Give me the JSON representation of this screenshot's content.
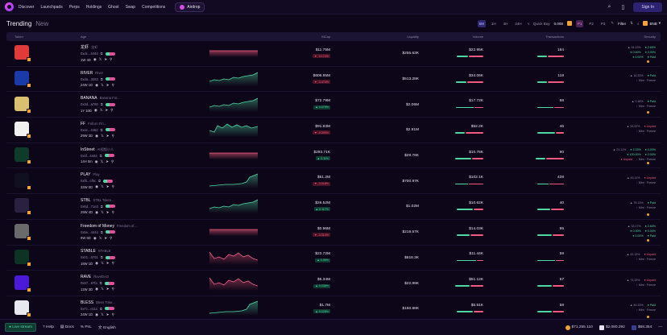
{
  "nav": {
    "items": [
      "Discover",
      "Launchpads",
      "Perps",
      "Holdings",
      "Ghost",
      "Swap",
      "Competitions"
    ],
    "airdrop": "Airdrop",
    "sign_in": "Sign In"
  },
  "subheader": {
    "tab_trending": "Trending",
    "tab_new": "New",
    "timeframes": [
      "5M",
      "1H",
      "4H",
      "24H"
    ],
    "active_timeframe": "5M",
    "quick_buy_label": "Quick Buy",
    "quick_buy_value": "0.008",
    "presets": [
      "P1",
      "P2",
      "P3"
    ],
    "active_preset": "P1",
    "filter_label": "Filter",
    "chain": "BNB"
  },
  "table": {
    "headers": {
      "token": "Token",
      "age": "Age",
      "mcap": "MCap",
      "liquidity": "Liquidity",
      "volume": "Volume",
      "transactions": "Transactions",
      "security": "Security"
    },
    "rows": [
      {
        "symbol": "龙虾",
        "name": "龙虾",
        "address": "0xdc...4444",
        "age": "1W 4D",
        "mcap": "$11.75M",
        "change": "▼ -3.174%",
        "dir": "down",
        "liquidity": "$255.63K",
        "volume": "$22.95K",
        "vol_buy": 14,
        "vol_sell": 18,
        "txns": "184",
        "tx_buy": 12,
        "tx_sell": 20,
        "avatar_color": "#e23a3a",
        "spark": "flat-down",
        "security": [
          [
            "▲ 34.13%",
            "● 2.65%"
          ],
          [
            "● 0.00%",
            "● 0.00%"
          ],
          [
            "● 0.00%",
            "● Paid"
          ]
        ],
        "warn": true
      },
      {
        "symbol": "RIVER",
        "name": "River",
        "address": "0xda...3253",
        "age": "24W 1D",
        "mcap": "$606.95M",
        "change": "▼ -3.474%",
        "dir": "down",
        "liquidity": "$513.28K",
        "volume": "$34.06K",
        "vol_buy": 13,
        "vol_sell": 20,
        "txns": "118",
        "tx_buy": 12,
        "tx_sell": 20,
        "avatar_color": "#1a3aa8",
        "spark": "up",
        "security": [
          [
            "▲ 10.33%",
            "● Paid"
          ],
          [
            "↑ Mint · Freeze"
          ]
        ],
        "warn": false
      },
      {
        "symbol": "BANANA",
        "name": "Banana For...",
        "address": "0x3d...a760",
        "age": "1Y 10D",
        "mcap": "$72.79M",
        "change": "▲ 0.079%",
        "dir": "up",
        "liquidity": "$2.06M",
        "volume": "$17.72K",
        "vol_buy": 22,
        "vol_sell": 11,
        "txns": "88",
        "tx_buy": 20,
        "tx_sell": 12,
        "avatar_color": "#d9c070",
        "spark": "up",
        "security": [
          [
            "▲ 3.18%",
            "● Paid"
          ],
          [
            "↑ Mint · Freeze"
          ]
        ],
        "warn": true
      },
      {
        "symbol": "FF",
        "name": "Falcon Fin...",
        "address": "0xac...4452",
        "age": "29W 3D",
        "mcap": "$91.83M",
        "change": "▼ -0.000%",
        "dir": "down",
        "liquidity": "$2.91M",
        "volume": "$52.2K",
        "vol_buy": 12,
        "vol_sell": 22,
        "txns": "46",
        "tx_buy": 22,
        "tx_sell": 10,
        "avatar_color": "#f0f0f0",
        "spark": "mixed",
        "security": [
          [
            "▲ 33.02%",
            "● Unpaid"
          ],
          [
            "↑ Mint · Freeze"
          ]
        ],
        "warn": false
      },
      {
        "symbol": "InStreet",
        "name": "AI视频小人",
        "address": "0x4f...4444",
        "age": "14H 0m",
        "mcap": "$293.71K",
        "change": "▲ 3.11%",
        "dir": "up",
        "liquidity": "$29.76K",
        "volume": "$10.76K",
        "vol_buy": 20,
        "vol_sell": 14,
        "txns": "90",
        "tx_buy": 12,
        "tx_sell": 22,
        "avatar_color": "#0f3b2a",
        "spark": "flat-down",
        "security": [
          [
            "▲ 21.11%",
            "● 3.33%",
            "● 0.00%"
          ],
          [
            "● 100.00%",
            "● 0.00%"
          ],
          [
            "● Unpaid",
            "↑ Mint · Freeze"
          ]
        ],
        "warn": true
      },
      {
        "symbol": "PLAY",
        "name": "Play",
        "address": "0xf5...cf5c",
        "age": "32W 0D",
        "mcap": "$51.2M",
        "change": "▼ -3.018%",
        "dir": "down",
        "liquidity": "$700.97K",
        "volume": "$102.1K",
        "vol_buy": 16,
        "vol_sell": 18,
        "txns": "428",
        "tx_buy": 14,
        "tx_sell": 18,
        "avatar_color": "#101020",
        "spark": "up-late",
        "security": [
          [
            "▲ 43.11%",
            "● Unpaid"
          ],
          [
            "↑ Mint · Freeze"
          ]
        ],
        "warn": false
      },
      {
        "symbol": "STBL",
        "name": "STBL Token...",
        "address": "0x6d...71e3",
        "age": "29W 4D",
        "mcap": "$26.52M",
        "change": "▲ 0.117%",
        "dir": "up",
        "liquidity": "$1.02M",
        "volume": "$10.62K",
        "vol_buy": 20,
        "vol_sell": 12,
        "txns": "40",
        "tx_buy": 16,
        "tx_sell": 16,
        "avatar_color": "#2a2040",
        "spark": "up",
        "security": [
          [
            "▲ 75.13%",
            "● Paid"
          ],
          [
            "↑ Mint · Freeze"
          ]
        ],
        "warn": true
      },
      {
        "symbol": "Freedom of Money",
        "name": "Freedom of...",
        "address": "0x5e...4444",
        "age": "9W 6D",
        "mcap": "$0.96M",
        "change": "▼ -3.314%",
        "dir": "down",
        "liquidity": "$219.57K",
        "volume": "$14.03K",
        "vol_buy": 16,
        "vol_sell": 16,
        "txns": "95",
        "tx_buy": 18,
        "tx_sell": 14,
        "avatar_color": "#6a6a6a",
        "spark": "flat-down",
        "security": [
          [
            "▲ 33.17%",
            "● 2.65%"
          ],
          [
            "● 0.00%",
            "● 0.00%"
          ],
          [
            "● 0.00%",
            "● Paid"
          ]
        ],
        "warn": true
      },
      {
        "symbol": "STABLE",
        "name": "STABLE",
        "address": "0x01...6751",
        "age": "18W 1D",
        "mcap": "$23.72M",
        "change": "▲ 0.06%",
        "dir": "up",
        "liquidity": "$618.3K",
        "volume": "$11.44K",
        "vol_buy": 24,
        "vol_sell": 8,
        "txns": "59",
        "tx_buy": 22,
        "tx_sell": 10,
        "avatar_color": "#0d3324",
        "spark": "red-wave",
        "security": [
          [
            "▲ 43.13%",
            "● Unpaid"
          ],
          [
            "↑ Mint · Freeze"
          ]
        ],
        "warn": false
      },
      {
        "symbol": "RAVE",
        "name": "RaveDAO",
        "address": "0x97...97fa",
        "age": "12W 3D",
        "mcap": "$5.34M",
        "change": "▲ 0.038%",
        "dir": "up",
        "liquidity": "$22.99K",
        "volume": "$51.12K",
        "vol_buy": 18,
        "vol_sell": 16,
        "txns": "57",
        "tx_buy": 18,
        "tx_sell": 14,
        "avatar_color": "#4a1ad8",
        "spark": "red-wave",
        "security": [
          [
            "▲ 73.33%",
            "● Unpaid"
          ],
          [
            "↑ Mint · Freeze"
          ]
        ],
        "warn": false
      },
      {
        "symbol": "BLESS",
        "name": "Bless Toke...",
        "address": "0x7c...e111",
        "age": "24W 1D",
        "mcap": "$1.7M",
        "change": "▲ 0.028%",
        "dir": "up",
        "liquidity": "$150.88K",
        "volume": "$5.51K",
        "vol_buy": 20,
        "vol_sell": 12,
        "txns": "58",
        "tx_buy": 18,
        "tx_sell": 14,
        "avatar_color": "#e8e8f0",
        "spark": "up-late",
        "security": [
          [
            "▲ 44.33%",
            "● Paid"
          ],
          [
            "↑ Mint · Freeze"
          ]
        ],
        "warn": true
      }
    ]
  },
  "footer": {
    "live": "Live stream",
    "help": "Help",
    "docs": "Docs",
    "pnl": "PnL",
    "language": "English",
    "btc": "$71,255.110",
    "eth": "$2,080.292",
    "bnb": "$68.354"
  },
  "colors": {
    "up": "#4fd8a3",
    "down": "#ee5b7e",
    "accent": "#2e2870",
    "brand": "#d54ae8"
  }
}
